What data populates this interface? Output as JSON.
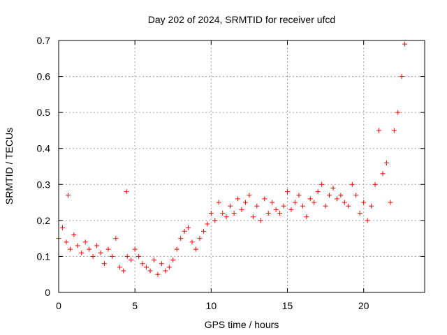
{
  "chart_data": {
    "type": "scatter",
    "title": "Day 202 of 2024, SRMTID for receiver ufcd",
    "xlabel": "GPS time / hours",
    "ylabel": "SRMTID / TECUs",
    "xlim": [
      0,
      24
    ],
    "ylim": [
      0,
      0.7
    ],
    "xticks": [
      0,
      5,
      10,
      15,
      20
    ],
    "yticks": [
      0,
      0.1,
      0.2,
      0.3,
      0.4,
      0.5,
      0.6,
      0.7
    ],
    "xtick_labels": [
      "0",
      "5",
      "10",
      "15",
      "20"
    ],
    "ytick_labels": [
      "0",
      "0.1",
      "0.2",
      "0.3",
      "0.4",
      "0.5",
      "0.6",
      "0.7"
    ],
    "grid": true,
    "marker": "+",
    "marker_color": "#ff0000",
    "series": [
      {
        "name": "SRMTID",
        "x": [
          0.0,
          0.25,
          0.5,
          0.62,
          0.75,
          1.0,
          1.25,
          1.5,
          1.75,
          2.0,
          2.25,
          2.5,
          2.75,
          3.0,
          3.25,
          3.5,
          3.75,
          4.0,
          4.25,
          4.45,
          4.5,
          4.75,
          5.0,
          5.25,
          5.5,
          5.75,
          6.0,
          6.25,
          6.5,
          6.75,
          7.0,
          7.25,
          7.5,
          7.75,
          8.0,
          8.25,
          8.5,
          8.75,
          9.0,
          9.25,
          9.5,
          9.75,
          10.0,
          10.25,
          10.5,
          10.75,
          11.0,
          11.25,
          11.5,
          11.75,
          12.0,
          12.25,
          12.5,
          12.75,
          13.0,
          13.25,
          13.5,
          13.75,
          14.0,
          14.25,
          14.5,
          14.75,
          15.0,
          15.25,
          15.5,
          15.75,
          16.0,
          16.25,
          16.5,
          16.75,
          17.0,
          17.25,
          17.5,
          17.75,
          18.0,
          18.25,
          18.5,
          18.75,
          19.0,
          19.25,
          19.5,
          19.75,
          20.0,
          20.25,
          20.5,
          20.75,
          21.0,
          21.25,
          21.5,
          21.75,
          22.0,
          22.25,
          22.5,
          22.7
        ],
        "y": [
          0.15,
          0.18,
          0.14,
          0.27,
          0.12,
          0.16,
          0.13,
          0.11,
          0.14,
          0.12,
          0.1,
          0.13,
          0.11,
          0.08,
          0.12,
          0.1,
          0.15,
          0.07,
          0.06,
          0.28,
          0.1,
          0.09,
          0.12,
          0.1,
          0.08,
          0.07,
          0.06,
          0.09,
          0.05,
          0.08,
          0.06,
          0.07,
          0.09,
          0.12,
          0.15,
          0.17,
          0.18,
          0.14,
          0.12,
          0.15,
          0.17,
          0.19,
          0.22,
          0.2,
          0.25,
          0.22,
          0.21,
          0.24,
          0.22,
          0.26,
          0.23,
          0.25,
          0.27,
          0.21,
          0.24,
          0.2,
          0.26,
          0.22,
          0.25,
          0.23,
          0.22,
          0.24,
          0.28,
          0.23,
          0.25,
          0.27,
          0.24,
          0.21,
          0.26,
          0.25,
          0.28,
          0.3,
          0.24,
          0.27,
          0.29,
          0.26,
          0.27,
          0.25,
          0.24,
          0.3,
          0.27,
          0.22,
          0.25,
          0.2,
          0.24,
          0.3,
          0.45,
          0.33,
          0.36,
          0.25,
          0.45,
          0.5,
          0.6,
          0.69
        ]
      }
    ]
  }
}
